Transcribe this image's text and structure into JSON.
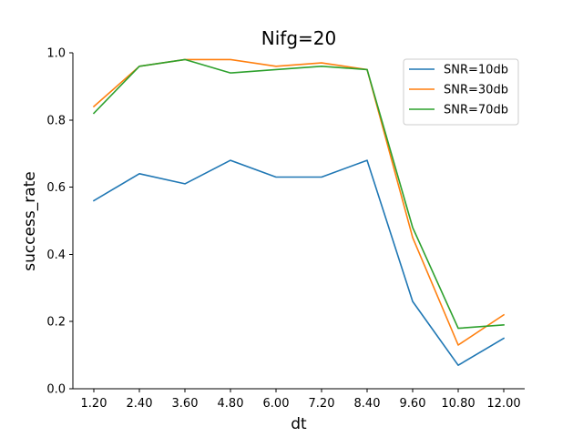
{
  "chart_data": {
    "type": "line",
    "title": "Nifg=20",
    "xlabel": "dt",
    "ylabel": "success_rate",
    "x": [
      "1.20",
      "2.40",
      "3.60",
      "4.80",
      "6.00",
      "7.20",
      "8.40",
      "9.60",
      "10.80",
      "12.00"
    ],
    "ylim": [
      0,
      1.0
    ],
    "yticks": [
      "0.0",
      "0.2",
      "0.4",
      "0.6",
      "0.8",
      "1.0"
    ],
    "grid": false,
    "legend_position": "top-right",
    "series": [
      {
        "name": "SNR=10db",
        "color": "#1f77b4",
        "values": [
          0.56,
          0.64,
          0.61,
          0.68,
          0.63,
          0.63,
          0.68,
          0.26,
          0.07,
          0.15
        ]
      },
      {
        "name": "SNR=30db",
        "color": "#ff7f0e",
        "values": [
          0.84,
          0.96,
          0.98,
          0.98,
          0.96,
          0.97,
          0.95,
          0.45,
          0.13,
          0.22
        ]
      },
      {
        "name": "SNR=70db",
        "color": "#2ca02c",
        "values": [
          0.82,
          0.96,
          0.98,
          0.94,
          0.95,
          0.96,
          0.95,
          0.48,
          0.18,
          0.19
        ]
      }
    ]
  }
}
